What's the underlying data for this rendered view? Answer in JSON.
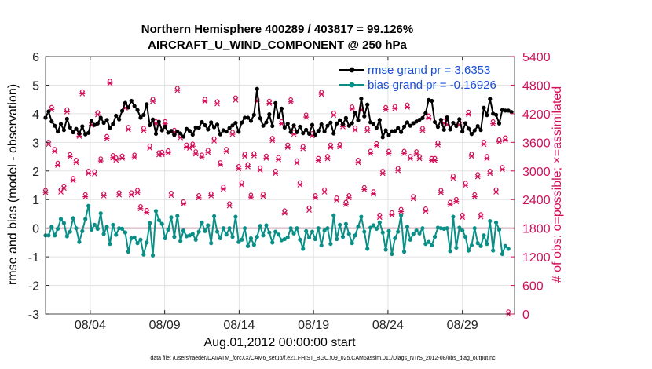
{
  "chart_data": {
    "type": "line",
    "title_line1": "Northern Hemisphere 400289 / 403817 = 99.126%",
    "title_line2": "AIRCRAFT_U_WIND_COMPONENT @ 250 hPa",
    "xlabel": "Aug.01,2012 00:00:00 start",
    "ylabel_left": "rmse and bias (model - observation)",
    "ylabel_right": "# of obs: o=possible; ×=assimilated",
    "footnote": "data file: /Users/raeder/DAI/ATM_forcXX/CAM6_setup/f.e21.FHIST_BGC.f09_025.CAM6assim.011/Diags_NTrS_2012-08/obs_diag_output.nc",
    "x_range": [
      0,
      31.5
    ],
    "ylim_left": [
      -3,
      6
    ],
    "ylim_right": [
      0,
      5400
    ],
    "x_tick_labels": [
      "08/04",
      "08/09",
      "08/14",
      "08/19",
      "08/24",
      "08/29"
    ],
    "x_tick_positions": [
      3,
      8,
      13,
      18,
      23,
      28
    ],
    "y_tick_labels_left": [
      "-3",
      "-2",
      "-1",
      "0",
      "1",
      "2",
      "3",
      "4",
      "5",
      "6"
    ],
    "y_tick_labels_right": [
      "0",
      "600",
      "1200",
      "1800",
      "2400",
      "3000",
      "3600",
      "4200",
      "4800",
      "5400"
    ],
    "colors": {
      "rmse": "#000000",
      "bias": "#0a8f87",
      "obs": "#d1105a",
      "legend_text": "#1a4fd6",
      "zero_line": "#c8a8b4",
      "grid": "#e2e2e2"
    },
    "series": [
      {
        "name": "rmse grand pr = 3.6353",
        "values": [
          3.86,
          4.08,
          3.73,
          3.58,
          3.38,
          3.64,
          3.43,
          3.82,
          3.52,
          3.35,
          3.47,
          3.31,
          3.56,
          3.28,
          3.33,
          3.75,
          3.61,
          3.66,
          3.86,
          3.68,
          3.78,
          3.51,
          3.64,
          3.93,
          3.8,
          4.1,
          4.38,
          4.22,
          4.45,
          4.27,
          4.13,
          3.86,
          3.96,
          4.33,
          3.6,
          3.8,
          3.3,
          3.72,
          3.42,
          3.55,
          3.34,
          3.4,
          3.26,
          3.38,
          3.31,
          3.2,
          3.47,
          3.4,
          3.27,
          3.52,
          3.51,
          3.71,
          3.6,
          3.45,
          3.7,
          3.53,
          3.62,
          3.28,
          3.42,
          3.38,
          3.5,
          3.59,
          3.68,
          3.37,
          3.69,
          3.86,
          3.86,
          3.75,
          3.96,
          4.87,
          3.84,
          3.58,
          3.7,
          3.98,
          3.57,
          4.37,
          3.9,
          4.18,
          3.52,
          3.65,
          3.36,
          3.59,
          3.36,
          3.55,
          3.32,
          3.44,
          3.3,
          3.61,
          3.27,
          3.4,
          3.63,
          3.38,
          3.58,
          3.69,
          3.31,
          3.66,
          3.77,
          3.64,
          3.85,
          3.58,
          3.67,
          4.03,
          3.77,
          4.53,
          3.91,
          4.32,
          3.7,
          3.63,
          3.51,
          3.78,
          3.18,
          3.42,
          3.25,
          3.39,
          3.4,
          3.5,
          3.36,
          3.55,
          3.7,
          3.58,
          3.67,
          3.73,
          3.79,
          3.85,
          4.02,
          4.48,
          4.45,
          3.71,
          3.54,
          3.79,
          3.44,
          3.87,
          3.45,
          3.68,
          3.57,
          3.81,
          3.38,
          3.67,
          3.48,
          3.29,
          3.42,
          3.57,
          3.43,
          4.21,
          3.95,
          4.52,
          4.0,
          3.96,
          3.66,
          4.13,
          4.11,
          4.11,
          4.06
        ],
        "color": "#000000"
      },
      {
        "name": "bias grand pr = -0.16926",
        "values": [
          -0.25,
          -0.25,
          0.05,
          -0.25,
          -0.02,
          0.32,
          0.18,
          -0.28,
          -0.12,
          0.35,
          0.0,
          -0.48,
          -0.1,
          0.32,
          0.78,
          -0.05,
          0.12,
          -0.02,
          0.52,
          -0.2,
          0.05,
          -0.55,
          0.12,
          -0.23,
          0.0,
          -0.02,
          -0.15,
          -0.82,
          -0.35,
          -0.32,
          -0.52,
          -0.4,
          -0.92,
          -0.5,
          0.18,
          -0.95,
          0.6,
          0.28,
          0.15,
          -0.35,
          -0.05,
          0.38,
          -0.3,
          0.43,
          -0.45,
          -0.08,
          -0.28,
          -0.25,
          -0.2,
          -0.4,
          -0.12,
          0.2,
          -0.1,
          0.1,
          -0.52,
          0.42,
          -0.12,
          -0.35,
          0.0,
          -0.22,
          0.0,
          -0.3,
          0.4,
          -0.48,
          -0.4,
          0.0,
          -0.62,
          -0.35,
          -0.58,
          -0.3,
          0.08,
          -0.25,
          0.1,
          -0.15,
          -0.5,
          -0.12,
          -0.22,
          -0.42,
          -0.38,
          -0.32,
          0.0,
          -0.18,
          0.0,
          -0.4,
          -0.72,
          -0.1,
          -0.32,
          -0.12,
          -0.38,
          0.0,
          -0.6,
          -0.08,
          0.0,
          -0.55,
          0.45,
          -0.38,
          0.12,
          -0.3,
          0.15,
          -0.2,
          -0.52,
          -0.25,
          0.05,
          0.4,
          -0.12,
          -0.72,
          0.02,
          0.1,
          -0.02,
          0.2,
          -0.15,
          -0.75,
          -0.1,
          -0.9,
          -0.35,
          -0.12,
          0.45,
          -0.82,
          0.05,
          -0.4,
          -0.2,
          -0.08,
          -0.18,
          0.0,
          -0.55,
          -0.48,
          -0.6,
          -0.3,
          0.02,
          0.0,
          -0.02,
          0.0,
          -0.8,
          0.4,
          -0.68,
          0.02,
          -0.08,
          -0.3,
          -0.78,
          -0.6,
          0.0,
          -0.52,
          -0.62,
          -0.25,
          -0.55,
          0.25,
          -0.78,
          0.2,
          -0.05,
          -0.9,
          -0.62,
          -0.72
        ],
        "color": "#0a8f87"
      },
      {
        "name": "# of obs possible/assimilated",
        "values": [
          2550,
          3560,
          4290,
          3410,
          3120,
          2560,
          2640,
          4240,
          3300,
          2800,
          3180,
          3730,
          4620,
          2460,
          2950,
          3960,
          2940,
          4180,
          3210,
          2480,
          3680,
          4840,
          3280,
          3230,
          2500,
          3270,
          4320,
          3870,
          2500,
          3290,
          2550,
          2210,
          3850,
          2130,
          3480,
          4460,
          3990,
          3340,
          3350,
          3990,
          3380,
          2490,
          3810,
          4690,
          3700,
          2310,
          3500,
          3480,
          3520,
          3360,
          2440,
          3290,
          4460,
          3390,
          2480,
          3630,
          4410,
          3130,
          2620,
          3410,
          2270,
          3770,
          4490,
          3050,
          2710,
          3310,
          3090,
          2450,
          3320,
          4460,
          3020,
          2470,
          3270,
          4420,
          3640,
          2950,
          3240,
          3990,
          2120,
          3500,
          4450,
          3770,
          3170,
          2710,
          3470,
          4130,
          2180,
          3740,
          2440,
          3220,
          4610,
          2560,
          3260,
          3500,
          4170,
          2390,
          3510,
          3930,
          2300,
          2440,
          4300,
          3860,
          3180,
          4280,
          2610,
          3850,
          3370,
          2520,
          3530,
          2030,
          2950,
          4290,
          3370,
          2080,
          4310,
          3010,
          2150,
          3370,
          4340,
          3260,
          2420,
          3360,
          3260,
          3850,
          2160,
          4110,
          3220,
          3220,
          3550,
          2550,
          4000,
          3970,
          2300,
          2850,
          2360,
          3970,
          2030,
          2700,
          4190,
          3310,
          2460,
          2880,
          2040,
          3560,
          3260,
          2950,
          3990,
          2560,
          3610,
          3030,
          3650,
          0
        ],
        "color": "#d1105a"
      }
    ]
  }
}
